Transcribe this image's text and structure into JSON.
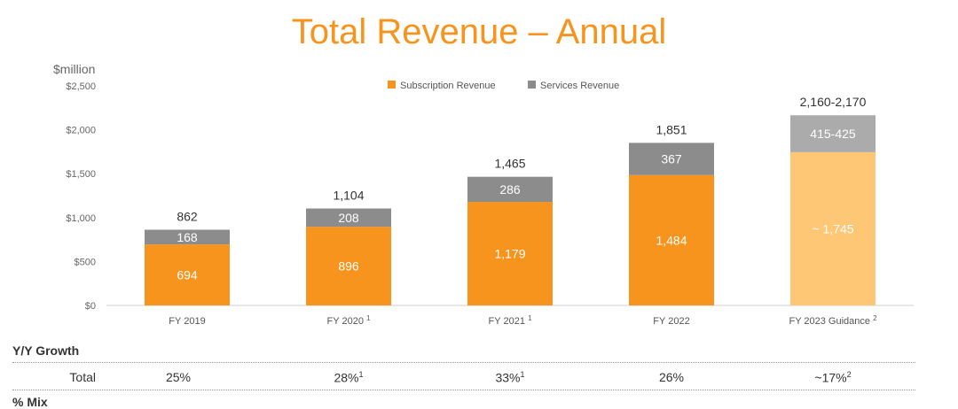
{
  "title": "Total Revenue – Annual",
  "unit_label": "$million",
  "chart_data": {
    "type": "stacked-bar",
    "title": "Total Revenue – Annual",
    "ylabel": "$million",
    "ylim": [
      0,
      2500
    ],
    "yticks": [
      0,
      500,
      1000,
      1500,
      2000,
      2500
    ],
    "ytick_labels": [
      "$0",
      "$500",
      "$1,000",
      "$1,500",
      "$2,000",
      "$2,500"
    ],
    "categories": [
      {
        "label": "FY 2019",
        "sup": ""
      },
      {
        "label": "FY 2020",
        "sup": "1"
      },
      {
        "label": "FY 2021",
        "sup": "1"
      },
      {
        "label": "FY 2022",
        "sup": ""
      },
      {
        "label": "FY 2023 Guidance",
        "sup": "2"
      }
    ],
    "series": [
      {
        "name": "Subscription Revenue",
        "color": "#F7941D",
        "guidance_color": "#FDC776",
        "values": [
          694,
          896,
          1179,
          1484,
          1745
        ],
        "labels": [
          "694",
          "896",
          "1,179",
          "1,484",
          "~ 1,745"
        ]
      },
      {
        "name": "Services Revenue",
        "color": "#8C8C8C",
        "guidance_color": "#ABABAB",
        "values": [
          168,
          208,
          286,
          367,
          420
        ],
        "labels": [
          "168",
          "208",
          "286",
          "367",
          "415-425"
        ]
      }
    ],
    "totals": [
      862,
      1104,
      1465,
      1851,
      2165
    ],
    "total_labels": [
      "862",
      "1,104",
      "1,465",
      "1,851",
      "2,160-2,170"
    ],
    "guidance_index": 4,
    "legend_position": "top-center"
  },
  "growth": {
    "header": "Y/Y Growth",
    "row_label": "Total",
    "values": [
      "25%",
      "28%",
      "33%",
      "26%",
      "~17%"
    ],
    "sups": [
      "",
      "1",
      "1",
      "",
      "2"
    ]
  },
  "mix_header": "% Mix"
}
